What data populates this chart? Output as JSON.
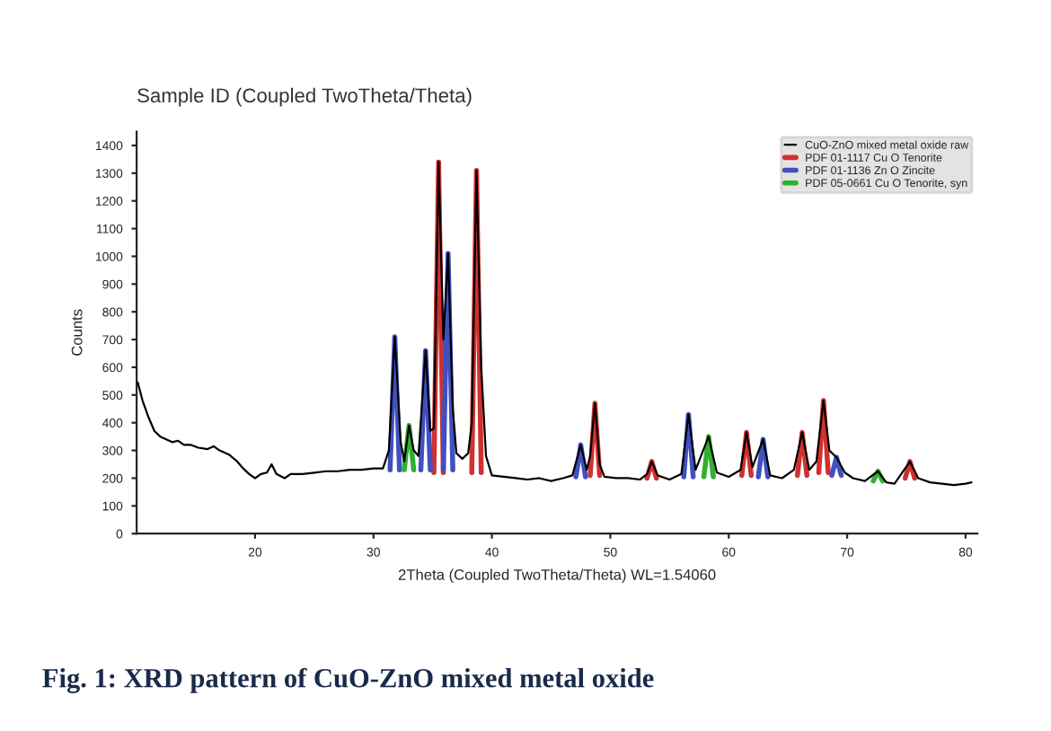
{
  "chart_data": {
    "type": "line",
    "title": "Sample ID (Coupled TwoTheta/Theta)",
    "xlabel": "2Theta (Coupled TwoTheta/Theta) WL=1.54060",
    "ylabel": "Counts",
    "annotations": [
      "Fig. 1: XRD pattern of CuO-ZnO mixed metal oxide"
    ],
    "xlim": [
      10,
      81
    ],
    "xticks": [
      20,
      30,
      40,
      50,
      60,
      70,
      80
    ],
    "ylim": [
      0,
      1450
    ],
    "yticks": [
      0,
      100,
      200,
      300,
      400,
      500,
      600,
      700,
      800,
      900,
      1000,
      1100,
      1200,
      1300,
      1400
    ],
    "grid": false,
    "legend": "top right",
    "marker": "none",
    "line_style": "solid",
    "series": [
      {
        "name": "CuO-ZnO mixed metal oxide raw",
        "color": "#000000",
        "x": [
          10.1,
          10.5,
          11,
          11.5,
          12,
          12.5,
          13,
          13.5,
          14,
          14.6,
          15.2,
          16,
          16.5,
          17,
          17.8,
          18.5,
          19,
          19.5,
          20,
          20.5,
          21,
          21.4,
          21.8,
          22.5,
          23,
          24,
          25,
          26,
          27,
          28,
          29,
          30,
          30.8,
          31.3,
          31.8,
          32.3,
          32.6,
          33.0,
          33.4,
          33.8,
          34.4,
          34.8,
          35.1,
          35.5,
          35.9,
          36.3,
          36.7,
          37.0,
          37.5,
          38.0,
          38.3,
          38.7,
          39.1,
          39.5,
          40,
          41,
          42,
          43,
          44,
          45,
          46,
          46.8,
          47.5,
          48.0,
          48.3,
          48.7,
          49.1,
          49.5,
          50.5,
          51.5,
          52.5,
          53.1,
          53.5,
          54,
          55,
          56,
          56.6,
          57.2,
          58.3,
          59,
          60,
          61,
          61.5,
          62,
          62.9,
          63.5,
          64.5,
          65.5,
          66.2,
          66.8,
          67.4,
          68.0,
          68.5,
          69.1,
          69.8,
          70.5,
          71.5,
          72.6,
          73.3,
          74,
          75.3,
          76,
          77,
          78,
          79,
          80,
          80.5
        ],
        "values": [
          545,
          480,
          420,
          370,
          350,
          340,
          330,
          335,
          320,
          320,
          310,
          305,
          315,
          300,
          285,
          260,
          235,
          215,
          200,
          215,
          220,
          250,
          215,
          200,
          215,
          215,
          220,
          225,
          225,
          230,
          230,
          235,
          235,
          300,
          710,
          330,
          260,
          390,
          300,
          280,
          660,
          370,
          380,
          1340,
          700,
          1010,
          450,
          290,
          270,
          290,
          400,
          1310,
          600,
          280,
          210,
          205,
          200,
          195,
          200,
          190,
          200,
          210,
          320,
          230,
          280,
          470,
          250,
          205,
          200,
          200,
          195,
          215,
          260,
          210,
          195,
          215,
          430,
          230,
          350,
          220,
          205,
          230,
          365,
          240,
          340,
          210,
          200,
          230,
          365,
          230,
          260,
          480,
          300,
          275,
          220,
          200,
          190,
          225,
          185,
          180,
          260,
          200,
          185,
          180,
          175,
          180,
          185
        ]
      },
      {
        "name": "PDF 01-1117 Cu O Tenorite",
        "color": "#d03030",
        "x": [
          35.1,
          35.5,
          35.9,
          36.0,
          38.3,
          38.7,
          39.1,
          39.2,
          48.3,
          48.7,
          49.1,
          49.2,
          53.1,
          53.5,
          53.9,
          54.0,
          61.1,
          61.5,
          61.9,
          62.0,
          65.8,
          66.2,
          66.6,
          66.7,
          67.6,
          68.0,
          68.4,
          68.5,
          74.9,
          75.3,
          75.7
        ],
        "values": [
          220,
          1340,
          220,
          null,
          220,
          1310,
          220,
          null,
          210,
          470,
          210,
          null,
          200,
          260,
          200,
          null,
          210,
          365,
          210,
          null,
          210,
          365,
          210,
          null,
          220,
          480,
          220,
          null,
          200,
          260,
          200
        ]
      },
      {
        "name": "PDF 01-1136 Zn O Zincite",
        "color": "#4050c0",
        "x": [
          31.4,
          31.8,
          32.2,
          32.3,
          34.0,
          34.4,
          34.8,
          34.9,
          35.9,
          36.3,
          36.7,
          36.8,
          47.1,
          47.5,
          47.9,
          48.0,
          56.2,
          56.6,
          57.0,
          57.1,
          62.5,
          62.9,
          63.3,
          63.4,
          68.7,
          69.1,
          69.5
        ],
        "values": [
          230,
          710,
          230,
          null,
          230,
          660,
          230,
          null,
          230,
          1010,
          230,
          null,
          205,
          320,
          205,
          null,
          205,
          430,
          205,
          null,
          205,
          340,
          205,
          null,
          210,
          275,
          210
        ]
      },
      {
        "name": "PDF 05-0661 Cu O Tenorite, syn",
        "color": "#30b030",
        "x": [
          32.6,
          33.0,
          33.4,
          33.5,
          57.9,
          58.3,
          58.7,
          58.8,
          72.2,
          72.6,
          73.0
        ],
        "values": [
          230,
          390,
          230,
          null,
          205,
          350,
          205,
          null,
          190,
          225,
          190
        ]
      }
    ]
  }
}
